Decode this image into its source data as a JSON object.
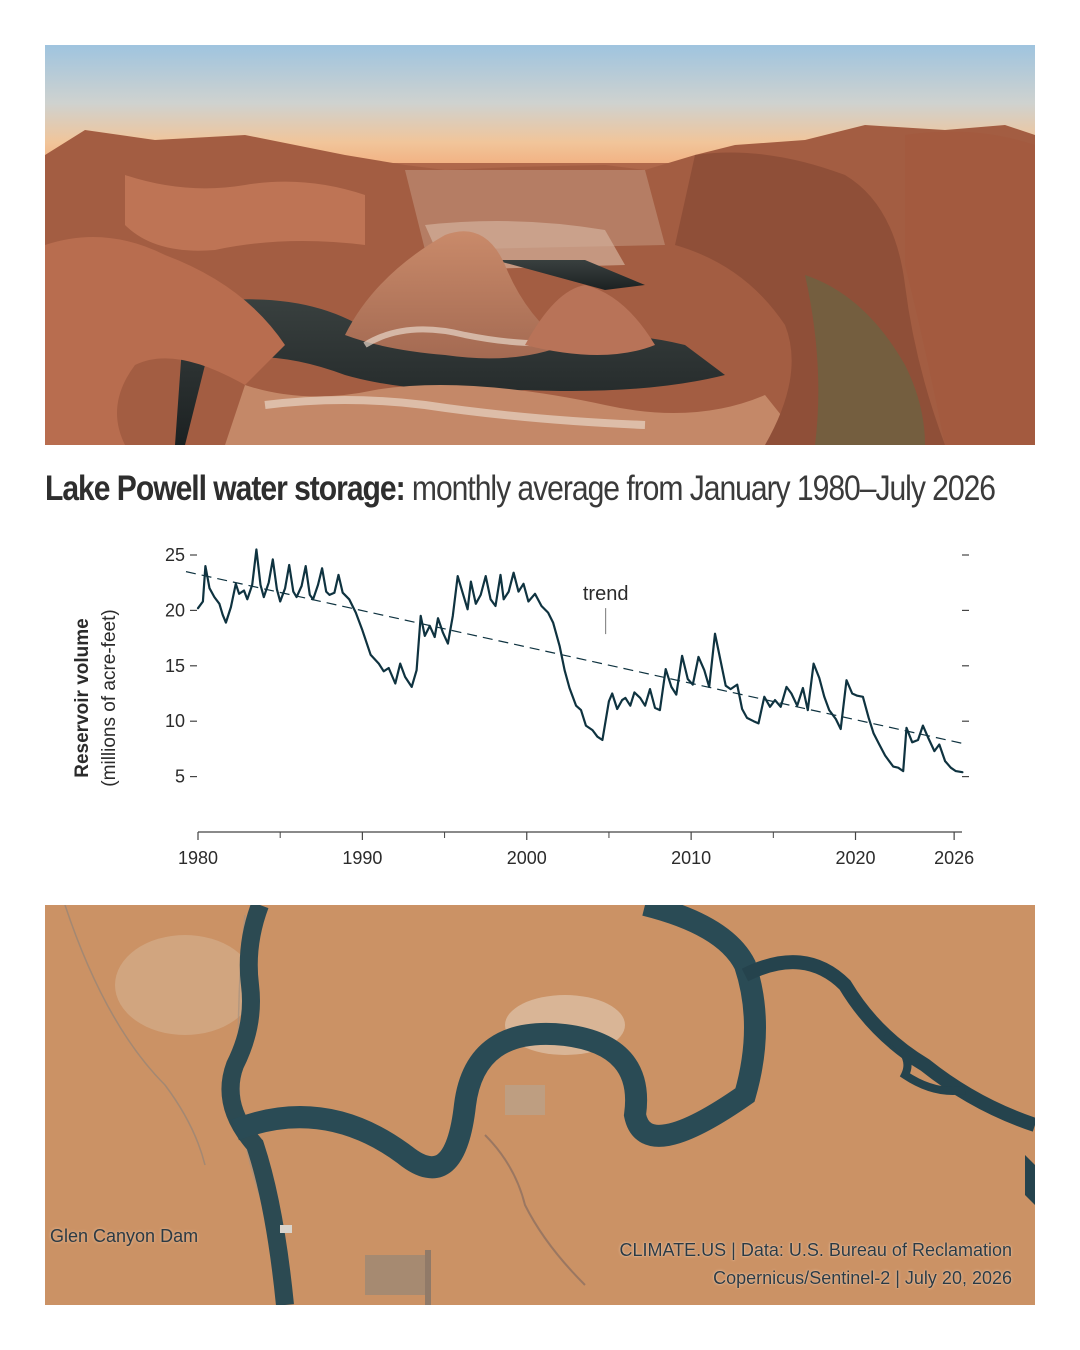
{
  "headline": {
    "bold": "Lake Powell water storage:",
    "light": " monthly average from January 1980–July 2026"
  },
  "images": {
    "top": "canyon reservoir panorama at sunset",
    "bottom": "satellite view of Lake Powell near Glen Canyon Dam"
  },
  "map": {
    "dam_label": "Glen Canyon Dam",
    "credit_line1": "CLIMATE.US | Data: U.S. Bureau of Reclamation",
    "credit_line2": "Copernicus/Sentinel-2 | July 20, 2026"
  },
  "colors": {
    "series": "#0f3340",
    "axis": "#444444",
    "text": "#2b2b2b"
  },
  "chart_data": {
    "type": "line",
    "title": "Lake Powell water storage: monthly average from January 1980–July 2026",
    "ylabel": "Reservoir volume",
    "ylabel_units": "(millions of acre-feet)",
    "xlabel": "",
    "xlim": [
      1980,
      2026.6
    ],
    "ylim": [
      0,
      25
    ],
    "x_ticks": [
      {
        "value": 1980,
        "label": "1980"
      },
      {
        "value": 1990,
        "label": "1990"
      },
      {
        "value": 2000,
        "label": "2000"
      },
      {
        "value": 2010,
        "label": "2010"
      },
      {
        "value": 2020,
        "label": "2020"
      },
      {
        "value": 2026,
        "label": "2026"
      }
    ],
    "x_minor_ticks": [
      1985,
      1995,
      2005,
      2015
    ],
    "y_ticks": [
      5,
      10,
      15,
      20,
      25
    ],
    "grid": false,
    "annotation": {
      "text": "trend",
      "x": 2004.8,
      "y": 17.5
    },
    "trend": {
      "x": [
        1980,
        2026.5
      ],
      "y": [
        23.5,
        8.0
      ]
    },
    "series": [
      {
        "x": [
          1980.0,
          1980.3,
          1980.45,
          1980.7,
          1981.0,
          1981.3,
          1981.5,
          1981.7,
          1982.0,
          1982.3,
          1982.5,
          1982.8,
          1983.0,
          1983.3,
          1983.55,
          1983.8,
          1984.0,
          1984.3,
          1984.55,
          1984.8,
          1985.0,
          1985.3,
          1985.55,
          1985.8,
          1986.0,
          1986.3,
          1986.55,
          1986.8,
          1987.0,
          1987.3,
          1987.55,
          1987.8,
          1988.0,
          1988.3,
          1988.55,
          1988.8,
          1989.2,
          1989.6,
          1990.0,
          1990.5,
          1991.0,
          1991.3,
          1991.6,
          1992.0,
          1992.3,
          1992.6,
          1993.0,
          1993.3,
          1993.55,
          1993.8,
          1994.1,
          1994.4,
          1994.6,
          1994.9,
          1995.2,
          1995.5,
          1995.8,
          1996.1,
          1996.4,
          1996.6,
          1996.9,
          1997.2,
          1997.5,
          1997.8,
          1998.1,
          1998.4,
          1998.6,
          1998.9,
          1999.2,
          1999.5,
          1999.8,
          2000.1,
          2000.5,
          2000.9,
          2001.3,
          2001.6,
          2002.0,
          2002.3,
          2002.6,
          2003.0,
          2003.3,
          2003.6,
          2004.0,
          2004.3,
          2004.6,
          2005.0,
          2005.2,
          2005.5,
          2005.8,
          2006.0,
          2006.3,
          2006.55,
          2006.9,
          2007.2,
          2007.5,
          2007.8,
          2008.1,
          2008.45,
          2008.8,
          2009.1,
          2009.45,
          2009.8,
          2010.1,
          2010.45,
          2010.8,
          2011.1,
          2011.45,
          2011.8,
          2012.1,
          2012.4,
          2012.8,
          2013.1,
          2013.4,
          2013.8,
          2014.1,
          2014.45,
          2014.8,
          2015.1,
          2015.45,
          2015.8,
          2016.1,
          2016.45,
          2016.8,
          2017.1,
          2017.45,
          2017.8,
          2018.1,
          2018.4,
          2018.8,
          2019.1,
          2019.45,
          2019.8,
          2020.1,
          2020.45,
          2020.8,
          2021.1,
          2021.45,
          2021.8,
          2022.1,
          2022.3,
          2022.6,
          2022.9,
          2023.1,
          2023.45,
          2023.8,
          2024.1,
          2024.45,
          2024.8,
          2025.1,
          2025.45,
          2025.8,
          2026.1,
          2026.5
        ],
        "y": [
          20.2,
          20.8,
          24.0,
          22.0,
          21.2,
          20.6,
          19.6,
          18.9,
          20.3,
          22.4,
          21.5,
          21.8,
          21.0,
          22.3,
          25.5,
          22.3,
          21.2,
          22.5,
          24.6,
          21.9,
          20.8,
          22.0,
          24.1,
          21.7,
          21.2,
          22.2,
          24.0,
          21.4,
          21.0,
          22.3,
          23.8,
          21.7,
          21.4,
          21.6,
          23.2,
          21.6,
          21.0,
          19.8,
          18.2,
          16.0,
          15.2,
          14.5,
          14.8,
          13.4,
          15.2,
          14.0,
          13.1,
          14.6,
          19.5,
          17.7,
          18.6,
          17.6,
          19.3,
          18.0,
          17.0,
          19.5,
          23.1,
          21.6,
          20.1,
          22.6,
          20.6,
          21.4,
          23.1,
          21.0,
          20.4,
          23.2,
          21.0,
          21.7,
          23.4,
          21.7,
          22.4,
          20.8,
          21.5,
          20.4,
          19.8,
          18.9,
          16.8,
          14.6,
          13.0,
          11.4,
          11.0,
          9.6,
          9.2,
          8.6,
          8.3,
          11.8,
          12.5,
          11.1,
          11.9,
          12.1,
          11.4,
          12.6,
          12.1,
          11.4,
          12.9,
          11.2,
          11.0,
          14.7,
          13.1,
          12.4,
          15.9,
          13.8,
          13.3,
          15.8,
          14.6,
          13.1,
          17.9,
          15.4,
          13.2,
          12.9,
          13.3,
          11.1,
          10.3,
          10.0,
          9.8,
          12.2,
          11.3,
          11.9,
          11.3,
          13.1,
          12.5,
          11.4,
          13.0,
          11.0,
          15.2,
          13.9,
          12.2,
          11.0,
          10.2,
          9.3,
          13.7,
          12.5,
          12.3,
          12.2,
          10.3,
          8.9,
          7.9,
          6.9,
          6.3,
          5.9,
          5.8,
          5.5,
          9.4,
          8.1,
          8.3,
          9.6,
          8.4,
          7.3,
          7.9,
          6.4,
          5.8,
          5.5,
          5.4
        ]
      }
    ]
  }
}
